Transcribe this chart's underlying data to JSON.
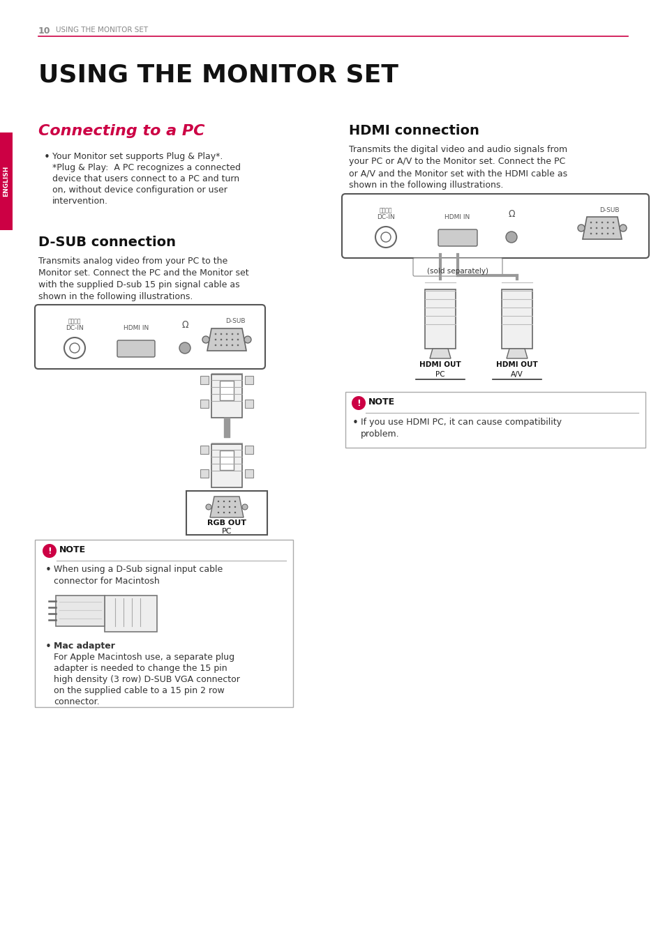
{
  "page_bg": "#ffffff",
  "page_number": "10",
  "header_text": "USING THE MONITOR SET",
  "header_line_color": "#cc0044",
  "main_title": "USING THE MONITOR SET",
  "english_tab_color": "#cc0044",
  "english_tab_text": "ENGLISH",
  "section1_title": "Connecting to a PC",
  "section1_title_color": "#cc0044",
  "section1_bullet": "Your Monitor set supports Plug & Play*.\n*Plug & Play:  A PC recognizes a connected\ndevice that users connect to a PC and turn\non, without device configuration or user\nintervention.",
  "section2_title": "D-SUB connection",
  "section2_body": "Transmits analog video from your PC to the\nMonitor set. Connect the PC and the Monitor set\nwith the supplied D-sub 15 pin signal cable as\nshown in the following illustrations.",
  "section3_title": "HDMI connection",
  "section3_body": "Transmits the digital video and audio signals from\nyour PC or A/V to the Monitor set. Connect the PC\nor A/V and the Monitor set with the HDMI cable as\nshown in the following illustrations.",
  "note1_title": "NOTE",
  "note1_bullet": "When using a D-Sub signal input cable\nconnector for Macintosh",
  "note1_mac": "Mac adapter",
  "note1_mac_body": "For Apple Macintosh use, a separate plug\nadapter is needed to change the 15 pin\nhigh density (3 row) D-SUB VGA connector\non the supplied cable to a 15 pin 2 row\nconnector.",
  "note2_title": "NOTE",
  "note2_bullet": "If you use HDMI PC, it can cause compatibility\nproblem.",
  "note_icon_color": "#cc0044",
  "connector_color": "#cccccc",
  "line_color": "#333333"
}
